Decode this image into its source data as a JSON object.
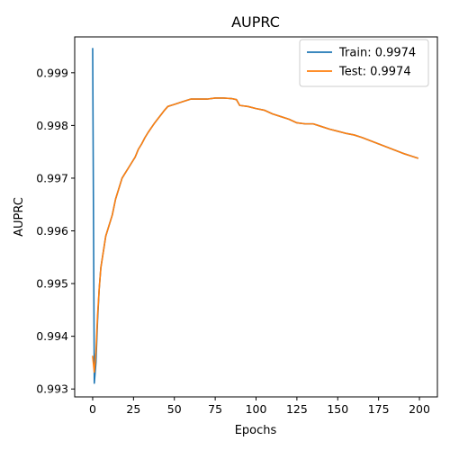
{
  "chart_data": {
    "type": "line",
    "title": "AUPRC",
    "xlabel": "Epochs",
    "ylabel": "AUPRC",
    "xlim": [
      -11,
      211
    ],
    "ylim": [
      0.99285,
      0.99968
    ],
    "xticks": [
      0,
      25,
      50,
      75,
      100,
      125,
      150,
      175,
      200
    ],
    "yticks": [
      0.993,
      0.994,
      0.995,
      0.996,
      0.997,
      0.998,
      0.999
    ],
    "grid": false,
    "legend_position": "top-right",
    "series": [
      {
        "name": "Train: 0.9974",
        "color": "#1f77b4",
        "x": [
          0,
          1,
          2,
          3,
          4,
          5,
          6,
          7,
          8,
          9,
          10,
          12,
          14,
          16,
          18,
          20,
          22,
          24,
          26,
          28,
          30,
          32,
          34,
          36,
          38,
          40,
          42,
          44,
          46,
          48,
          50,
          55,
          60,
          65,
          70,
          75,
          80,
          85,
          88,
          90,
          95,
          100,
          105,
          110,
          115,
          120,
          125,
          130,
          135,
          140,
          145,
          150,
          155,
          160,
          165,
          170,
          175,
          180,
          185,
          190,
          195,
          199
        ],
        "y": [
          0.99946,
          0.99311,
          0.9935,
          0.9943,
          0.9949,
          0.9953,
          0.9955,
          0.9957,
          0.9959,
          0.996,
          0.9961,
          0.9963,
          0.9966,
          0.9968,
          0.997,
          0.9971,
          0.9972,
          0.9973,
          0.9974,
          0.99755,
          0.99765,
          0.99777,
          0.99787,
          0.99796,
          0.99805,
          0.99813,
          0.99821,
          0.99829,
          0.99836,
          0.99838,
          0.9984,
          0.99845,
          0.9985,
          0.9985,
          0.9985,
          0.99852,
          0.99852,
          0.99851,
          0.99849,
          0.99838,
          0.99836,
          0.99832,
          0.99829,
          0.99822,
          0.99817,
          0.99812,
          0.99805,
          0.99803,
          0.99803,
          0.99798,
          0.99793,
          0.99789,
          0.99785,
          0.99782,
          0.99777,
          0.99771,
          0.99765,
          0.99759,
          0.99753,
          0.99747,
          0.99742,
          0.99738
        ]
      },
      {
        "name": "Test: 0.9974",
        "color": "#ff7f0e",
        "x": [
          0,
          1,
          2,
          3,
          4,
          5,
          6,
          7,
          8,
          9,
          10,
          12,
          14,
          16,
          18,
          20,
          22,
          24,
          26,
          28,
          30,
          32,
          34,
          36,
          38,
          40,
          42,
          44,
          46,
          48,
          50,
          55,
          60,
          65,
          70,
          75,
          80,
          85,
          88,
          90,
          95,
          100,
          105,
          110,
          115,
          120,
          125,
          130,
          135,
          140,
          145,
          150,
          155,
          160,
          165,
          170,
          175,
          180,
          185,
          190,
          195,
          199
        ],
        "y": [
          0.99362,
          0.99332,
          0.9937,
          0.9944,
          0.9949,
          0.9953,
          0.9955,
          0.9957,
          0.9959,
          0.996,
          0.9961,
          0.9963,
          0.9966,
          0.9968,
          0.997,
          0.9971,
          0.9972,
          0.9973,
          0.9974,
          0.99755,
          0.99765,
          0.99777,
          0.99787,
          0.99796,
          0.99805,
          0.99813,
          0.99821,
          0.99829,
          0.99836,
          0.99838,
          0.9984,
          0.99845,
          0.9985,
          0.9985,
          0.9985,
          0.99852,
          0.99852,
          0.99851,
          0.99849,
          0.99838,
          0.99836,
          0.99832,
          0.99829,
          0.99822,
          0.99817,
          0.99812,
          0.99805,
          0.99803,
          0.99803,
          0.99798,
          0.99793,
          0.99789,
          0.99785,
          0.99782,
          0.99777,
          0.99771,
          0.99765,
          0.99759,
          0.99753,
          0.99747,
          0.99742,
          0.99738
        ]
      }
    ]
  }
}
